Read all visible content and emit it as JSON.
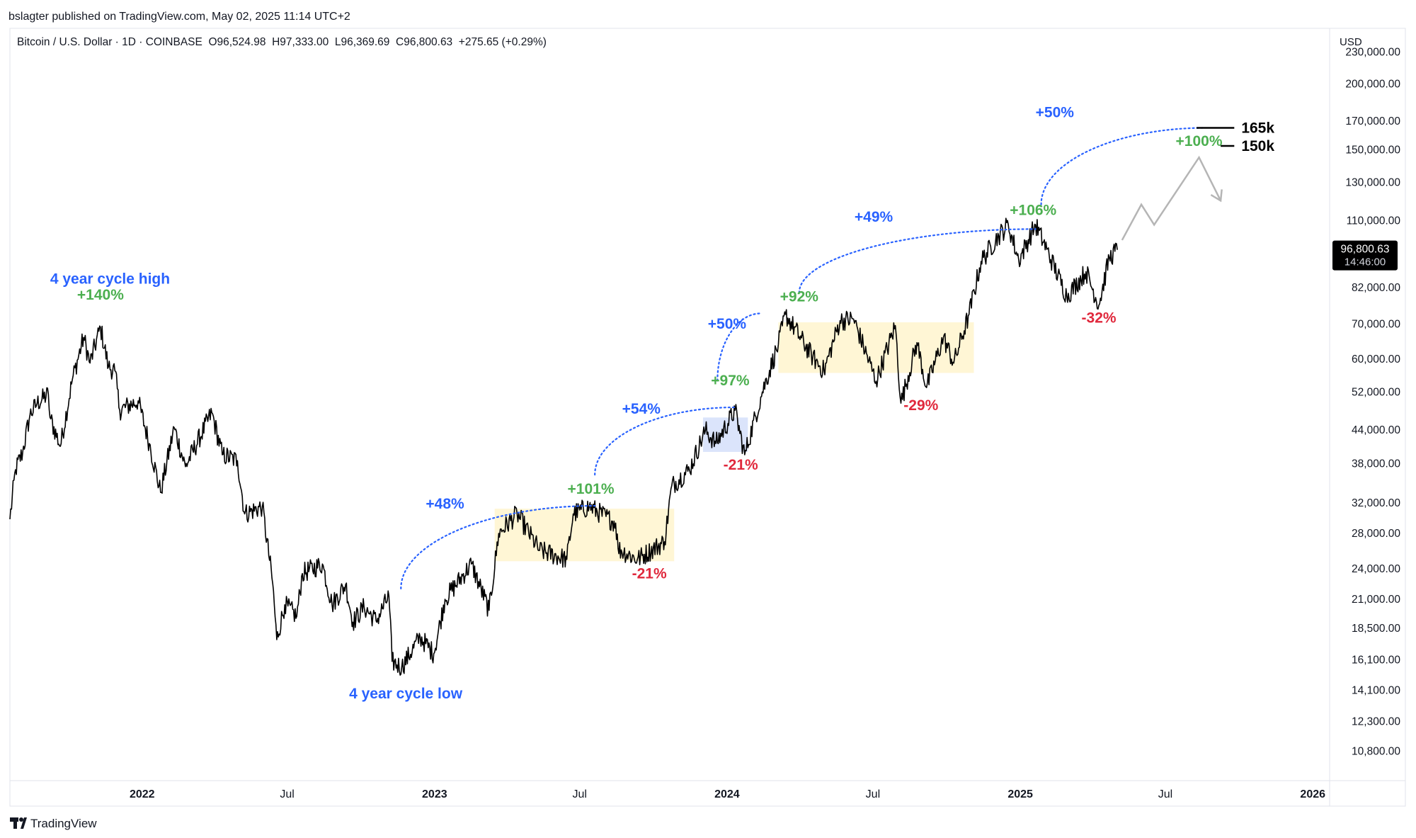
{
  "publish": {
    "text": "bslagter published on TradingView.com, May 02, 2025 11:14 UTC+2"
  },
  "symbol_line": {
    "text": "Bitcoin / U.S. Dollar · 1D · COINBASE  O96,524.98  H97,333.00  L96,369.69  C96,800.63  +275.65 (+0.29%)"
  },
  "footer": {
    "brand": "TradingView",
    "logo_icon": "tradingview-logo-icon"
  },
  "colors": {
    "price": "#000000",
    "blue": "#2962ff",
    "green": "#4caf50",
    "red": "#e0283c",
    "range_fill": "#fff6d5",
    "range_fill_blue": "#dbe4fb",
    "projection": "#b5b5b5"
  },
  "chart_data": {
    "type": "line",
    "symbol": "Bitcoin / U.S. Dollar",
    "interval": "1D",
    "exchange": "COINBASE",
    "ohlc": {
      "open": "96,524.98",
      "high": "97,333.00",
      "low": "96,369.69",
      "close": "96,800.63",
      "change": "+275.65 (+0.29%)"
    },
    "y_scale": "log",
    "y_unit": "USD",
    "ylim": [
      9500,
      255000
    ],
    "xlim": [
      "2021-07-20",
      "2026-01-22"
    ],
    "y_ticks": [
      {
        "value": 230000,
        "label": "230,000.00"
      },
      {
        "value": 200000,
        "label": "200,000.00"
      },
      {
        "value": 170000,
        "label": "170,000.00"
      },
      {
        "value": 150000,
        "label": "150,000.00"
      },
      {
        "value": 130000,
        "label": "130,000.00"
      },
      {
        "value": 110000,
        "label": "110,000.00"
      },
      {
        "value": 82000,
        "label": "82,000.00"
      },
      {
        "value": 70000,
        "label": "70,000.00"
      },
      {
        "value": 60000,
        "label": "60,000.00"
      },
      {
        "value": 52000,
        "label": "52,000.00"
      },
      {
        "value": 44000,
        "label": "44,000.00"
      },
      {
        "value": 38000,
        "label": "38,000.00"
      },
      {
        "value": 32000,
        "label": "32,000.00"
      },
      {
        "value": 28000,
        "label": "28,000.00"
      },
      {
        "value": 24000,
        "label": "24,000.00"
      },
      {
        "value": 21000,
        "label": "21,000.00"
      },
      {
        "value": 18500,
        "label": "18,500.00"
      },
      {
        "value": 16100,
        "label": "16,100.00"
      },
      {
        "value": 14100,
        "label": "14,100.00"
      },
      {
        "value": 12300,
        "label": "12,300.00"
      },
      {
        "value": 10800,
        "label": "10,800.00"
      }
    ],
    "x_ticks": [
      {
        "date": "2022-01-01",
        "label": "2022",
        "bold": true
      },
      {
        "date": "2022-07-01",
        "label": "Jul",
        "bold": false
      },
      {
        "date": "2023-01-01",
        "label": "2023",
        "bold": true
      },
      {
        "date": "2023-07-01",
        "label": "Jul",
        "bold": false
      },
      {
        "date": "2024-01-01",
        "label": "2024",
        "bold": true
      },
      {
        "date": "2024-07-01",
        "label": "Jul",
        "bold": false
      },
      {
        "date": "2025-01-01",
        "label": "2025",
        "bold": true
      },
      {
        "date": "2025-07-01",
        "label": "Jul",
        "bold": false
      },
      {
        "date": "2026-01-01",
        "label": "2026",
        "bold": true
      }
    ],
    "last_price": {
      "value": 96800.63,
      "label": "96,800.63",
      "countdown": "14:46:00"
    },
    "series": [
      {
        "points": [
          [
            "2021-07-20",
            29800
          ],
          [
            "2021-07-27",
            37000
          ],
          [
            "2021-08-05",
            40000
          ],
          [
            "2021-08-14",
            47000
          ],
          [
            "2021-08-23",
            49500
          ],
          [
            "2021-09-06",
            51500
          ],
          [
            "2021-09-08",
            46500
          ],
          [
            "2021-09-21",
            41000
          ],
          [
            "2021-10-06",
            55000
          ],
          [
            "2021-10-20",
            66000
          ],
          [
            "2021-10-28",
            59000
          ],
          [
            "2021-11-10",
            69000
          ],
          [
            "2021-11-20",
            58000
          ],
          [
            "2021-11-28",
            57000
          ],
          [
            "2021-12-04",
            48000
          ],
          [
            "2021-12-27",
            50000
          ],
          [
            "2022-01-10",
            41500
          ],
          [
            "2022-01-24",
            33500
          ],
          [
            "2022-02-10",
            44500
          ],
          [
            "2022-02-24",
            37500
          ],
          [
            "2022-03-29",
            47500
          ],
          [
            "2022-04-11",
            39500
          ],
          [
            "2022-04-30",
            38500
          ],
          [
            "2022-05-09",
            30500
          ],
          [
            "2022-05-31",
            31500
          ],
          [
            "2022-06-13",
            22500
          ],
          [
            "2022-06-18",
            17600
          ],
          [
            "2022-06-28",
            20500
          ],
          [
            "2022-07-13",
            19500
          ],
          [
            "2022-07-20",
            23500
          ],
          [
            "2022-08-14",
            24500
          ],
          [
            "2022-08-26",
            20500
          ],
          [
            "2022-09-12",
            22400
          ],
          [
            "2022-09-21",
            19000
          ],
          [
            "2022-10-05",
            20300
          ],
          [
            "2022-10-20",
            19100
          ],
          [
            "2022-11-05",
            21300
          ],
          [
            "2022-11-09",
            16000
          ],
          [
            "2022-11-21",
            15600
          ],
          [
            "2022-12-14",
            17800
          ],
          [
            "2022-12-31",
            16550
          ],
          [
            "2023-01-14",
            21000
          ],
          [
            "2023-02-16",
            24500
          ],
          [
            "2023-03-10",
            20000
          ],
          [
            "2023-03-22",
            28000
          ],
          [
            "2023-04-14",
            30500
          ],
          [
            "2023-05-12",
            26000
          ],
          [
            "2023-06-15",
            25000
          ],
          [
            "2023-06-23",
            30500
          ],
          [
            "2023-07-13",
            31500
          ],
          [
            "2023-08-15",
            29300
          ],
          [
            "2023-08-18",
            26200
          ],
          [
            "2023-09-11",
            25000
          ],
          [
            "2023-10-15",
            27000
          ],
          [
            "2023-10-24",
            34500
          ],
          [
            "2023-11-15",
            37000
          ],
          [
            "2023-12-05",
            44000
          ],
          [
            "2023-12-18",
            41500
          ],
          [
            "2024-01-11",
            48000
          ],
          [
            "2024-01-23",
            39500
          ],
          [
            "2024-02-14",
            52000
          ],
          [
            "2024-03-05",
            64000
          ],
          [
            "2024-03-14",
            73000
          ],
          [
            "2024-04-17",
            60500
          ],
          [
            "2024-05-01",
            57000
          ],
          [
            "2024-05-21",
            71000
          ],
          [
            "2024-06-07",
            71500
          ],
          [
            "2024-07-05",
            54500
          ],
          [
            "2024-07-29",
            69500
          ],
          [
            "2024-08-05",
            49500
          ],
          [
            "2024-08-25",
            64500
          ],
          [
            "2024-09-06",
            53000
          ],
          [
            "2024-09-27",
            66000
          ],
          [
            "2024-10-10",
            59000
          ],
          [
            "2024-10-29",
            73000
          ],
          [
            "2024-11-13",
            92000
          ],
          [
            "2024-12-05",
            103000
          ],
          [
            "2024-12-17",
            108000
          ],
          [
            "2024-12-30",
            92500
          ],
          [
            "2025-01-20",
            108000
          ],
          [
            "2025-02-03",
            97000
          ],
          [
            "2025-02-28",
            79000
          ],
          [
            "2025-03-24",
            88000
          ],
          [
            "2025-04-09",
            76000
          ],
          [
            "2025-04-22",
            93500
          ],
          [
            "2025-05-02",
            96800
          ]
        ]
      }
    ],
    "annotations": [
      {
        "text": "4 year cycle high",
        "color": "blue",
        "at": [
          "2021-11-22",
          83500
        ]
      },
      {
        "text": "+140%",
        "color": "green",
        "at": [
          "2021-11-10",
          77800
        ]
      },
      {
        "text": "4 year cycle low",
        "color": "blue",
        "at": [
          "2022-11-26",
          13600
        ]
      },
      {
        "text": "+48%",
        "color": "blue",
        "at": [
          "2023-01-14",
          31200
        ]
      },
      {
        "text": "+101%",
        "color": "green",
        "at": [
          "2023-07-15",
          33300
        ]
      },
      {
        "text": "-21%",
        "color": "red",
        "at": [
          "2023-09-26",
          23000
        ]
      },
      {
        "text": "+54%",
        "color": "blue",
        "at": [
          "2023-09-16",
          47300
        ]
      },
      {
        "text": "+97%",
        "color": "green",
        "at": [
          "2024-01-05",
          53500
        ]
      },
      {
        "text": "-21%",
        "color": "red",
        "at": [
          "2024-01-18",
          37000
        ]
      },
      {
        "text": "+50%",
        "color": "blue",
        "at": [
          "2024-01-01",
          68600
        ]
      },
      {
        "text": "+92%",
        "color": "green",
        "at": [
          "2024-03-31",
          77300
        ]
      },
      {
        "text": "+49%",
        "color": "blue",
        "at": [
          "2024-07-02",
          109400
        ]
      },
      {
        "text": "-29%",
        "color": "red",
        "at": [
          "2024-08-30",
          48000
        ]
      },
      {
        "text": "+106%",
        "color": "green",
        "at": [
          "2025-01-17",
          112700
        ]
      },
      {
        "text": "-32%",
        "color": "red",
        "at": [
          "2025-04-09",
          70400
        ]
      },
      {
        "text": "+50%",
        "color": "blue",
        "at": [
          "2025-02-13",
          172900
        ]
      },
      {
        "text": "+100%",
        "color": "green",
        "at": [
          "2025-08-12",
          152500
        ]
      }
    ],
    "target_levels": [
      {
        "label": "165k",
        "value": 165000,
        "from": "2025-08-09",
        "to": "2025-09-25"
      },
      {
        "label": "150k",
        "value": 152500,
        "from": "2025-09-08",
        "to": "2025-09-25"
      }
    ],
    "ranges": [
      {
        "from": "2023-03-17",
        "to": "2023-10-27",
        "low": 24800,
        "high": 31200,
        "fill": "range_fill"
      },
      {
        "from": "2023-12-02",
        "to": "2024-01-27",
        "low": 40000,
        "high": 46500,
        "fill": "range_fill_blue"
      },
      {
        "from": "2024-03-05",
        "to": "2024-11-04",
        "low": 56500,
        "high": 70500,
        "fill": "range_fill"
      }
    ],
    "arcs": [
      {
        "from": [
          "2022-11-20",
          22000
        ],
        "to": [
          "2023-07-20",
          31600
        ]
      },
      {
        "from": [
          "2023-07-20",
          36200
        ],
        "to": [
          "2024-01-10",
          48600
        ]
      },
      {
        "from": [
          "2023-12-20",
          54600
        ],
        "to": [
          "2024-02-12",
          73300
        ]
      },
      {
        "from": [
          "2024-03-31",
          80200
        ],
        "to": [
          "2025-01-20",
          106000
        ]
      },
      {
        "from": [
          "2025-01-27",
          118000
        ],
        "to": [
          "2025-08-20",
          165000
        ]
      }
    ],
    "projection": [
      [
        "2025-05-08",
        101000
      ],
      [
        "2025-06-01",
        118000
      ],
      [
        "2025-06-17",
        108000
      ],
      [
        "2025-08-12",
        145000
      ],
      [
        "2025-09-08",
        120000
      ]
    ]
  }
}
